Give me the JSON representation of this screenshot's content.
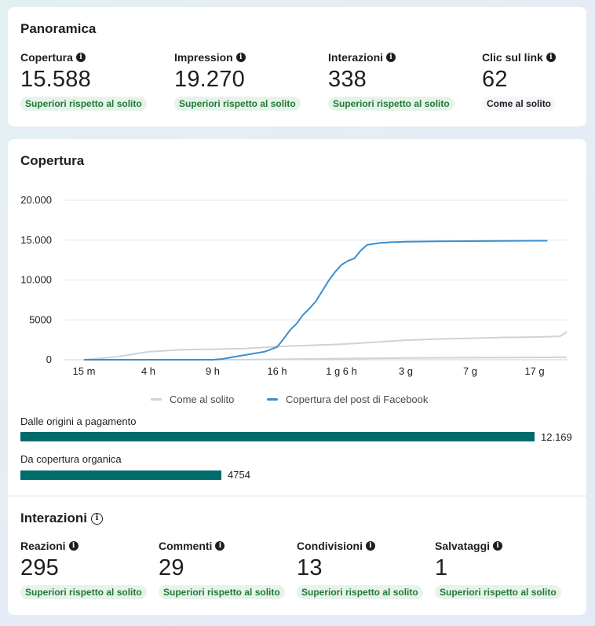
{
  "overview": {
    "title": "Panoramica",
    "metrics": [
      {
        "label": "Copertura",
        "value": "15.588",
        "badge": "Superiori rispetto al solito",
        "status": "up"
      },
      {
        "label": "Impression",
        "value": "19.270",
        "badge": "Superiori rispetto al solito",
        "status": "up"
      },
      {
        "label": "Interazioni",
        "value": "338",
        "badge": "Superiori rispetto al solito",
        "status": "up"
      },
      {
        "label": "Clic sul link",
        "value": "62",
        "badge": "Come al solito",
        "status": "neutral"
      }
    ]
  },
  "reach": {
    "title": "Copertura",
    "paid_label": "Dalle origini a pagamento",
    "paid_value": "12.169",
    "paid_number": 12169,
    "organic_label": "Da copertura organica",
    "organic_value": "4754",
    "organic_number": 4754
  },
  "interactions": {
    "title": "Interazioni",
    "metrics": [
      {
        "label": "Reazioni",
        "value": "295",
        "badge": "Superiori rispetto al solito",
        "status": "up"
      },
      {
        "label": "Commenti",
        "value": "29",
        "badge": "Superiori rispetto al solito",
        "status": "up"
      },
      {
        "label": "Condivisioni",
        "value": "13",
        "badge": "Superiori rispetto al solito",
        "status": "up"
      },
      {
        "label": "Salvataggi",
        "value": "1",
        "badge": "Superiori rispetto al solito",
        "status": "up"
      }
    ]
  },
  "colors": {
    "accent_line": "#3b8fd0",
    "usual_line": "#cfd2d6",
    "bar": "#006b6b",
    "badge_up_bg": "#e7f3ea",
    "badge_up_text": "#1e7a34"
  },
  "icons": {
    "metric_info": "info-icon",
    "section_info": "info-circle-icon"
  },
  "chart_data": {
    "type": "line",
    "title": "Copertura",
    "xlabel": "",
    "ylabel": "",
    "categories": [
      "15 m",
      "4 h",
      "9 h",
      "16 h",
      "1 g 6 h",
      "3 g",
      "7 g",
      "17 g"
    ],
    "ylim": [
      0,
      20000
    ],
    "y_ticks": [
      {
        "value": 0,
        "label": "0"
      },
      {
        "value": 5000,
        "label": "5000"
      },
      {
        "value": 10000,
        "label": "10.000"
      },
      {
        "value": 15000,
        "label": "15.000"
      },
      {
        "value": 20000,
        "label": "20.000"
      }
    ],
    "grid": true,
    "legend_position": "bottom",
    "series": [
      {
        "name": "Copertura del post di Facebook",
        "color": "#3b8fd0",
        "points": [
          [
            0,
            0
          ],
          [
            1,
            0
          ],
          [
            2,
            0
          ],
          [
            2.15,
            100
          ],
          [
            2.4,
            450
          ],
          [
            2.8,
            1000
          ],
          [
            3,
            1600
          ],
          [
            3.1,
            2600
          ],
          [
            3.2,
            3700
          ],
          [
            3.3,
            4500
          ],
          [
            3.4,
            5600
          ],
          [
            3.5,
            6400
          ],
          [
            3.6,
            7300
          ],
          [
            3.7,
            8600
          ],
          [
            3.8,
            9900
          ],
          [
            3.9,
            11000
          ],
          [
            4,
            11900
          ],
          [
            4.1,
            12400
          ],
          [
            4.2,
            12700
          ],
          [
            4.3,
            13700
          ],
          [
            4.4,
            14400
          ],
          [
            4.6,
            14650
          ],
          [
            4.8,
            14750
          ],
          [
            5,
            14800
          ],
          [
            5.5,
            14850
          ],
          [
            6,
            14880
          ],
          [
            6.5,
            14910
          ],
          [
            7,
            14930
          ],
          [
            7.2,
            14930
          ]
        ]
      },
      {
        "name": "Come al solito",
        "color": "#cfd2d6",
        "bands": [
          [
            [
              0,
              0
            ],
            [
              0.5,
              350
            ],
            [
              1,
              1000
            ],
            [
              1.5,
              1250
            ],
            [
              2,
              1320
            ],
            [
              2.5,
              1400
            ],
            [
              3,
              1650
            ],
            [
              3.5,
              1800
            ],
            [
              4,
              1950
            ],
            [
              4.5,
              2200
            ],
            [
              5,
              2450
            ],
            [
              5.5,
              2600
            ],
            [
              6,
              2700
            ],
            [
              6.5,
              2800
            ],
            [
              7,
              2850
            ],
            [
              7.4,
              2950
            ],
            [
              7.5,
              3500
            ]
          ],
          [
            [
              0,
              0
            ],
            [
              1,
              0
            ],
            [
              2,
              0
            ],
            [
              3,
              50
            ],
            [
              4,
              150
            ],
            [
              5,
              220
            ],
            [
              6,
              260
            ],
            [
              7,
              290
            ],
            [
              7.5,
              320
            ]
          ]
        ]
      }
    ]
  }
}
